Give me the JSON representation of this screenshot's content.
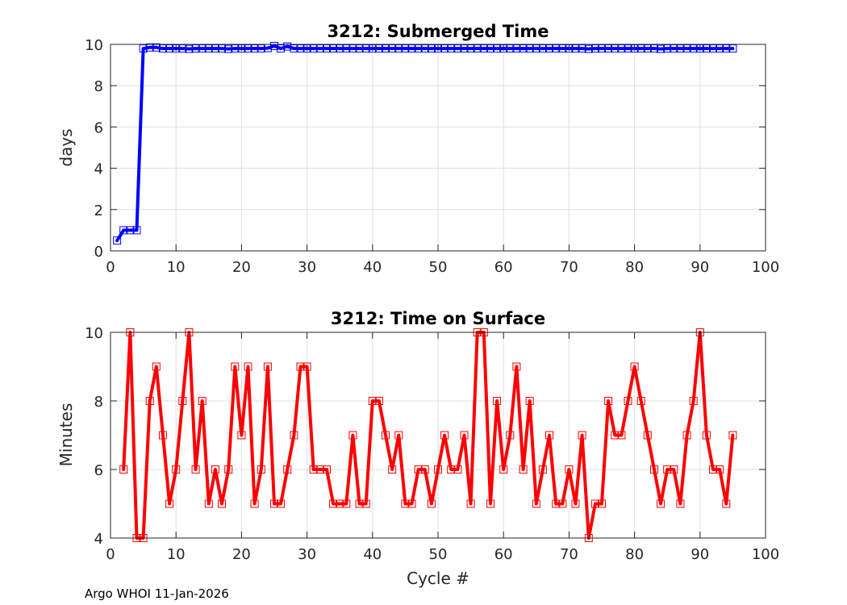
{
  "footer_text": "Argo WHOI 11-Jan-2026",
  "colors": {
    "top_series": "#0000ff",
    "bottom_series": "#ff0000"
  },
  "chart_data": [
    {
      "type": "line",
      "title": "3212: Submerged Time",
      "xlabel": "",
      "ylabel": "days",
      "xlim": [
        0,
        100
      ],
      "ylim": [
        0,
        10
      ],
      "xticks": [
        0,
        10,
        20,
        30,
        40,
        50,
        60,
        70,
        80,
        90,
        100
      ],
      "yticks": [
        0,
        2,
        4,
        6,
        8,
        10
      ],
      "grid": true,
      "marker": "square",
      "series": [
        {
          "name": "Submerged Time",
          "x": [
            1,
            2,
            3,
            4,
            5,
            6,
            7,
            8,
            9,
            10,
            11,
            12,
            13,
            14,
            15,
            16,
            17,
            18,
            19,
            20,
            21,
            22,
            23,
            24,
            25,
            26,
            27,
            28,
            29,
            30,
            31,
            32,
            33,
            34,
            35,
            36,
            37,
            38,
            39,
            40,
            41,
            42,
            43,
            44,
            45,
            46,
            47,
            48,
            49,
            50,
            51,
            52,
            53,
            54,
            55,
            56,
            57,
            58,
            59,
            60,
            61,
            62,
            63,
            64,
            65,
            66,
            67,
            68,
            69,
            70,
            71,
            72,
            73,
            74,
            75,
            76,
            77,
            78,
            79,
            80,
            81,
            82,
            83,
            84,
            85,
            86,
            87,
            88,
            89,
            90,
            91,
            92,
            93,
            94,
            95
          ],
          "values": [
            0.5,
            1,
            1,
            1,
            9.8,
            9.85,
            9.85,
            9.8,
            9.8,
            9.8,
            9.8,
            9.78,
            9.8,
            9.8,
            9.8,
            9.8,
            9.8,
            9.78,
            9.8,
            9.8,
            9.8,
            9.8,
            9.8,
            9.82,
            9.92,
            9.8,
            9.9,
            9.8,
            9.8,
            9.8,
            9.8,
            9.8,
            9.8,
            9.8,
            9.8,
            9.8,
            9.8,
            9.8,
            9.8,
            9.8,
            9.8,
            9.8,
            9.8,
            9.8,
            9.8,
            9.8,
            9.8,
            9.8,
            9.8,
            9.8,
            9.8,
            9.8,
            9.8,
            9.8,
            9.8,
            9.8,
            9.8,
            9.8,
            9.8,
            9.8,
            9.8,
            9.8,
            9.8,
            9.8,
            9.8,
            9.8,
            9.8,
            9.8,
            9.8,
            9.8,
            9.8,
            9.8,
            9.78,
            9.8,
            9.8,
            9.8,
            9.8,
            9.8,
            9.8,
            9.8,
            9.8,
            9.8,
            9.8,
            9.78,
            9.8,
            9.8,
            9.8,
            9.8,
            9.8,
            9.8,
            9.8,
            9.8,
            9.8,
            9.8,
            9.8
          ]
        }
      ]
    },
    {
      "type": "line",
      "title": "3212: Time on Surface",
      "xlabel": "Cycle #",
      "ylabel": "Minutes",
      "xlim": [
        0,
        100
      ],
      "ylim": [
        4,
        10
      ],
      "xticks": [
        0,
        10,
        20,
        30,
        40,
        50,
        60,
        70,
        80,
        90,
        100
      ],
      "yticks": [
        4,
        6,
        8,
        10
      ],
      "grid": true,
      "marker": "square",
      "series": [
        {
          "name": "Time on Surface",
          "x": [
            2,
            3,
            4,
            5,
            6,
            7,
            8,
            9,
            10,
            11,
            12,
            13,
            14,
            15,
            16,
            17,
            18,
            19,
            20,
            21,
            22,
            23,
            24,
            25,
            26,
            27,
            28,
            29,
            30,
            31,
            32,
            33,
            34,
            35,
            36,
            37,
            38,
            39,
            40,
            41,
            42,
            43,
            44,
            45,
            46,
            47,
            48,
            49,
            50,
            51,
            52,
            53,
            54,
            55,
            56,
            57,
            58,
            59,
            60,
            61,
            62,
            63,
            64,
            65,
            66,
            67,
            68,
            69,
            70,
            71,
            72,
            73,
            74,
            75,
            76,
            77,
            78,
            79,
            80,
            81,
            82,
            83,
            84,
            85,
            86,
            87,
            88,
            89,
            90,
            91,
            92,
            93,
            94,
            95
          ],
          "values": [
            6,
            10,
            4,
            4,
            8,
            9,
            7,
            5,
            6,
            8,
            10,
            6,
            8,
            5,
            6,
            5,
            6,
            9,
            7,
            9,
            5,
            6,
            9,
            5,
            5,
            6,
            7,
            9,
            9,
            6,
            6,
            6,
            5,
            5,
            5,
            7,
            5,
            5,
            8,
            8,
            7,
            6,
            7,
            5,
            5,
            6,
            6,
            5,
            6,
            7,
            6,
            6,
            7,
            5,
            10,
            10,
            5,
            8,
            6,
            7,
            9,
            6,
            8,
            5,
            6,
            7,
            5,
            5,
            6,
            5,
            7,
            4,
            5,
            5,
            8,
            7,
            7,
            8,
            9,
            8,
            7,
            6,
            5,
            6,
            6,
            5,
            7,
            8,
            10,
            7,
            6,
            6,
            5,
            7
          ]
        }
      ]
    }
  ]
}
